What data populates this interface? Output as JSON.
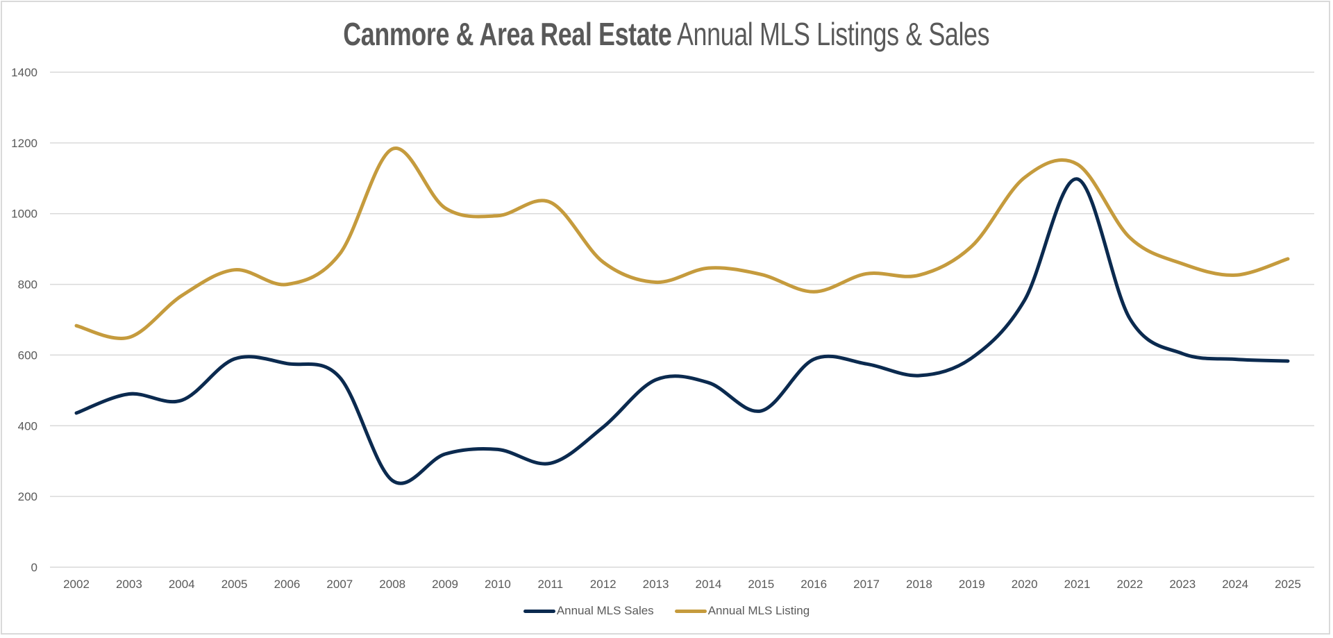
{
  "chart_data": {
    "type": "line",
    "title_bold": "Canmore & Area Real Estate",
    "title_light": "Annual MLS Listings & Sales",
    "xlabel": "",
    "ylabel": "",
    "x": [
      "2002",
      "2003",
      "2004",
      "2005",
      "2006",
      "2007",
      "2008",
      "2009",
      "2010",
      "2011",
      "2012",
      "2013",
      "2014",
      "2015",
      "2016",
      "2017",
      "2018",
      "2019",
      "2020",
      "2021",
      "2022",
      "2023",
      "2024",
      "2025"
    ],
    "ylim": [
      0,
      1400
    ],
    "yticks": [
      0,
      200,
      400,
      600,
      800,
      1000,
      1200,
      1400
    ],
    "grid": true,
    "smooth": true,
    "legend_position": "bottom",
    "series": [
      {
        "name": "Annual MLS Sales",
        "color": "#0B2A4F",
        "values": [
          436,
          490,
          472,
          589,
          576,
          537,
          245,
          320,
          333,
          294,
          396,
          530,
          522,
          442,
          588,
          575,
          542,
          592,
          755,
          1098,
          703,
          604,
          588,
          583
        ]
      },
      {
        "name": "Annual MLS Listing",
        "color": "#C59B3D",
        "values": [
          683,
          650,
          768,
          841,
          800,
          886,
          1183,
          1016,
          994,
          1032,
          863,
          806,
          846,
          828,
          779,
          830,
          826,
          908,
          1102,
          1140,
          932,
          858,
          826,
          872
        ]
      }
    ]
  }
}
